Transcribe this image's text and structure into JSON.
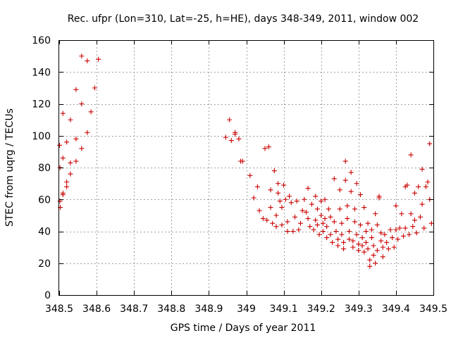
{
  "chart_data": {
    "type": "scatter",
    "title": "Rec. ufpr (Lon=310, Lat=-25, h=HE), days 348-349, 2011, window 002",
    "xlabel": "GPS time / Days of year 2011",
    "ylabel": "STEC from uqrg / TECUs",
    "xlim": [
      348.5,
      349.5
    ],
    "ylim": [
      0,
      160
    ],
    "xticks": [
      348.5,
      348.6,
      348.7,
      348.8,
      348.9,
      349.0,
      349.1,
      349.2,
      349.3,
      349.4,
      349.5
    ],
    "xtick_labels": [
      "348.5",
      "348.6",
      "348.7",
      "348.8",
      "348.9",
      "349",
      "349.1",
      "349.2",
      "349.3",
      "349.4",
      "349.5"
    ],
    "yticks": [
      0,
      20,
      40,
      60,
      80,
      100,
      120,
      140,
      160
    ],
    "ytick_labels": [
      "0",
      "20",
      "40",
      "60",
      "80",
      "100",
      "120",
      "140",
      "160"
    ],
    "grid": true,
    "marker": "+",
    "color": "#cc0000",
    "series": [
      {
        "name": "STEC",
        "points": [
          [
            348.501,
            94
          ],
          [
            348.502,
            80
          ],
          [
            348.502,
            59
          ],
          [
            348.503,
            55
          ],
          [
            348.51,
            86
          ],
          [
            348.51,
            64
          ],
          [
            348.51,
            63
          ],
          [
            348.51,
            114
          ],
          [
            348.52,
            96
          ],
          [
            348.52,
            71
          ],
          [
            348.52,
            68
          ],
          [
            348.53,
            110
          ],
          [
            348.53,
            83
          ],
          [
            348.53,
            76
          ],
          [
            348.545,
            129
          ],
          [
            348.545,
            98
          ],
          [
            348.545,
            84
          ],
          [
            348.56,
            150
          ],
          [
            348.56,
            120
          ],
          [
            348.56,
            92
          ],
          [
            348.575,
            147
          ],
          [
            348.575,
            102
          ],
          [
            348.585,
            115
          ],
          [
            348.595,
            130
          ],
          [
            348.605,
            148
          ],
          [
            348.945,
            99
          ],
          [
            348.955,
            110
          ],
          [
            348.96,
            97
          ],
          [
            348.97,
            101
          ],
          [
            348.97,
            102
          ],
          [
            348.98,
            98
          ],
          [
            348.985,
            84
          ],
          [
            348.99,
            84
          ],
          [
            349.01,
            75
          ],
          [
            349.02,
            61
          ],
          [
            349.03,
            68
          ],
          [
            349.035,
            53
          ],
          [
            349.045,
            48
          ],
          [
            349.05,
            92
          ],
          [
            349.055,
            47
          ],
          [
            349.06,
            93
          ],
          [
            349.065,
            66
          ],
          [
            349.065,
            55
          ],
          [
            349.07,
            45
          ],
          [
            349.075,
            78
          ],
          [
            349.08,
            50
          ],
          [
            349.08,
            43
          ],
          [
            349.085,
            70
          ],
          [
            349.085,
            64
          ],
          [
            349.09,
            59
          ],
          [
            349.095,
            55
          ],
          [
            349.095,
            44
          ],
          [
            349.1,
            69
          ],
          [
            349.105,
            60
          ],
          [
            349.11,
            46
          ],
          [
            349.11,
            40
          ],
          [
            349.115,
            62
          ],
          [
            349.12,
            58
          ],
          [
            349.125,
            40
          ],
          [
            349.13,
            49
          ],
          [
            349.135,
            59
          ],
          [
            349.14,
            41
          ],
          [
            349.145,
            45
          ],
          [
            349.15,
            53
          ],
          [
            349.155,
            60
          ],
          [
            349.16,
            52
          ],
          [
            349.165,
            67
          ],
          [
            349.165,
            48
          ],
          [
            349.17,
            43
          ],
          [
            349.175,
            57
          ],
          [
            349.18,
            41
          ],
          [
            349.185,
            62
          ],
          [
            349.185,
            47
          ],
          [
            349.19,
            54
          ],
          [
            349.19,
            44
          ],
          [
            349.195,
            38
          ],
          [
            349.2,
            59
          ],
          [
            349.2,
            50
          ],
          [
            349.205,
            45
          ],
          [
            349.205,
            40
          ],
          [
            349.21,
            60
          ],
          [
            349.21,
            48
          ],
          [
            349.215,
            43
          ],
          [
            349.215,
            36
          ],
          [
            349.22,
            54
          ],
          [
            349.225,
            49
          ],
          [
            349.225,
            38
          ],
          [
            349.23,
            33
          ],
          [
            349.235,
            73
          ],
          [
            349.235,
            46
          ],
          [
            349.24,
            40
          ],
          [
            349.245,
            35
          ],
          [
            349.245,
            31
          ],
          [
            349.25,
            66
          ],
          [
            349.25,
            54
          ],
          [
            349.255,
            45
          ],
          [
            349.255,
            38
          ],
          [
            349.26,
            33
          ],
          [
            349.26,
            29
          ],
          [
            349.265,
            84
          ],
          [
            349.265,
            72
          ],
          [
            349.27,
            56
          ],
          [
            349.27,
            48
          ],
          [
            349.275,
            40
          ],
          [
            349.275,
            35
          ],
          [
            349.28,
            77
          ],
          [
            349.28,
            65
          ],
          [
            349.285,
            34
          ],
          [
            349.285,
            30
          ],
          [
            349.29,
            54
          ],
          [
            349.29,
            46
          ],
          [
            349.295,
            70
          ],
          [
            349.295,
            38
          ],
          [
            349.3,
            32
          ],
          [
            349.3,
            28
          ],
          [
            349.305,
            63
          ],
          [
            349.305,
            44
          ],
          [
            349.31,
            36
          ],
          [
            349.31,
            31
          ],
          [
            349.315,
            55
          ],
          [
            349.315,
            27
          ],
          [
            349.32,
            40
          ],
          [
            349.32,
            33
          ],
          [
            349.325,
            45
          ],
          [
            349.325,
            29
          ],
          [
            349.33,
            22
          ],
          [
            349.33,
            18
          ],
          [
            349.335,
            41
          ],
          [
            349.335,
            36
          ],
          [
            349.34,
            31
          ],
          [
            349.34,
            25
          ],
          [
            349.345,
            51
          ],
          [
            349.345,
            20
          ],
          [
            349.35,
            44
          ],
          [
            349.35,
            28
          ],
          [
            349.355,
            62
          ],
          [
            349.355,
            61
          ],
          [
            349.36,
            39
          ],
          [
            349.36,
            34
          ],
          [
            349.365,
            30
          ],
          [
            349.365,
            24
          ],
          [
            349.37,
            38
          ],
          [
            349.375,
            33
          ],
          [
            349.38,
            29
          ],
          [
            349.385,
            41
          ],
          [
            349.39,
            36
          ],
          [
            349.395,
            30
          ],
          [
            349.4,
            56
          ],
          [
            349.4,
            41
          ],
          [
            349.405,
            35
          ],
          [
            349.41,
            42
          ],
          [
            349.415,
            51
          ],
          [
            349.42,
            37
          ],
          [
            349.425,
            68
          ],
          [
            349.425,
            42
          ],
          [
            349.43,
            69
          ],
          [
            349.435,
            38
          ],
          [
            349.44,
            88
          ],
          [
            349.44,
            51
          ],
          [
            349.445,
            43
          ],
          [
            349.45,
            64
          ],
          [
            349.45,
            47
          ],
          [
            349.455,
            39
          ],
          [
            349.46,
            68
          ],
          [
            349.465,
            49
          ],
          [
            349.47,
            79
          ],
          [
            349.47,
            57
          ],
          [
            349.475,
            42
          ],
          [
            349.48,
            68
          ],
          [
            349.485,
            71
          ],
          [
            349.49,
            95
          ],
          [
            349.49,
            60
          ],
          [
            349.495,
            45
          ]
        ]
      }
    ]
  }
}
